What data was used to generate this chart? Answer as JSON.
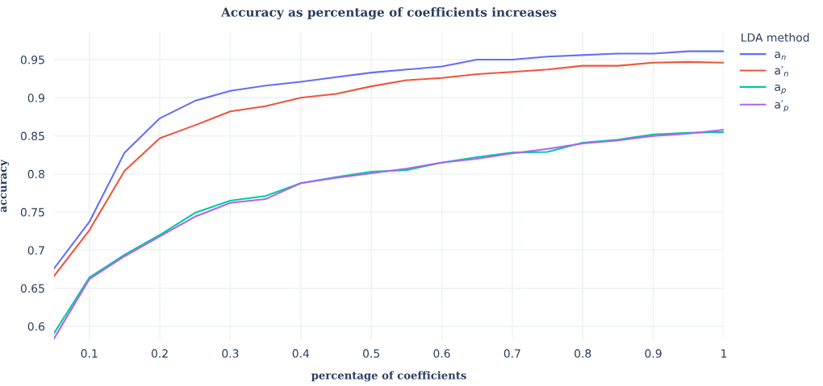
{
  "chart_data": {
    "type": "line",
    "title": "Accuracy as percentage of coefficients increases",
    "xlabel": "percentage of coefficients",
    "ylabel": "accuracy",
    "legend_title": "LDA method",
    "x": [
      0.05,
      0.1,
      0.15,
      0.2,
      0.25,
      0.3,
      0.35,
      0.4,
      0.45,
      0.5,
      0.55,
      0.6,
      0.65,
      0.7,
      0.75,
      0.8,
      0.85,
      0.9,
      0.95,
      1
    ],
    "series": [
      {
        "name": "a$_{n}$",
        "color": "#636efa",
        "values": [
          0.676,
          0.737,
          0.828,
          0.873,
          0.896,
          0.909,
          0.916,
          0.921,
          0.927,
          0.933,
          0.937,
          0.941,
          0.95,
          0.95,
          0.954,
          0.956,
          0.958,
          0.958,
          0.961,
          0.961
        ]
      },
      {
        "name": "a′$_{n}$",
        "color": "#ef553b",
        "values": [
          0.666,
          0.726,
          0.804,
          0.847,
          0.864,
          0.882,
          0.889,
          0.9,
          0.905,
          0.915,
          0.923,
          0.926,
          0.931,
          0.934,
          0.937,
          0.942,
          0.942,
          0.946,
          0.947,
          0.946
        ]
      },
      {
        "name": "a$_{p}$",
        "color": "#00cc96",
        "values": [
          0.591,
          0.664,
          0.694,
          0.72,
          0.749,
          0.765,
          0.771,
          0.788,
          0.796,
          0.803,
          0.805,
          0.815,
          0.822,
          0.828,
          0.829,
          0.841,
          0.845,
          0.852,
          0.854,
          0.855
        ]
      },
      {
        "name": "a′$_{p}$",
        "color": "#ab63fa",
        "values": [
          0.584,
          0.662,
          0.692,
          0.718,
          0.744,
          0.762,
          0.767,
          0.788,
          0.795,
          0.801,
          0.807,
          0.815,
          0.82,
          0.827,
          0.833,
          0.84,
          0.844,
          0.85,
          0.853,
          0.858
        ]
      }
    ],
    "xlim": [
      0.05,
      1
    ],
    "ylim": [
      0.582,
      0.986
    ],
    "xticks": [
      0.1,
      0.2,
      0.3,
      0.4,
      0.5,
      0.6,
      0.7,
      0.8,
      0.9,
      1
    ],
    "yticks": [
      0.6,
      0.65,
      0.7,
      0.75,
      0.8,
      0.85,
      0.9,
      0.95
    ],
    "grid": true,
    "legend": "top right"
  }
}
